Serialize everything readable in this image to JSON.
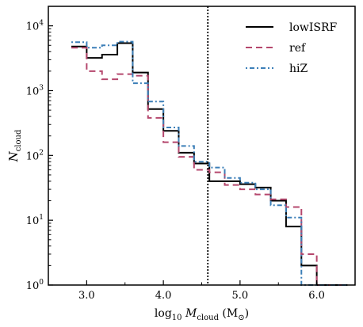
{
  "chart_data": {
    "type": "line",
    "drawstyle": "steps",
    "xlabel": {
      "prefix": "log",
      "prefix_sub": "10",
      "var": "M",
      "var_sub": "cloud",
      "unit_open": " (M",
      "unit_sym": "⊙",
      "unit_close": ")"
    },
    "ylabel": {
      "var": "N",
      "var_sub": "cloud"
    },
    "xlim": [
      2.5,
      6.5
    ],
    "ylim": [
      1,
      20000
    ],
    "yscale": "log",
    "xticks": [
      3.0,
      4.0,
      5.0,
      6.0
    ],
    "xtick_labels": [
      "3.0",
      "4.0",
      "5.0",
      "6.0"
    ],
    "yticks": [
      {
        "value": 1,
        "base": "10",
        "exp": "0"
      },
      {
        "value": 10,
        "base": "10",
        "exp": "1"
      },
      {
        "value": 100,
        "base": "10",
        "exp": "2"
      },
      {
        "value": 1000,
        "base": "10",
        "exp": "3"
      },
      {
        "value": 10000,
        "base": "10",
        "exp": "4"
      }
    ],
    "bin_edges": [
      2.8,
      3.0,
      3.2,
      3.4,
      3.6,
      3.8,
      4.0,
      4.2,
      4.4,
      4.6,
      4.8,
      5.0,
      5.2,
      5.4,
      5.6,
      5.8,
      6.0,
      6.2,
      6.4
    ],
    "vline_x": 4.58,
    "legend_position": "top-right",
    "series": [
      {
        "name": "lowISRF",
        "color": "#000000",
        "dash": "",
        "values": [
          4800,
          3200,
          3600,
          5400,
          1900,
          520,
          240,
          110,
          75,
          40,
          40,
          36,
          32,
          20,
          8,
          2,
          1,
          1
        ]
      },
      {
        "name": "ref",
        "color": "#b5476d",
        "dash": "8,5",
        "values": [
          4600,
          2000,
          1500,
          1800,
          1700,
          380,
          160,
          95,
          60,
          55,
          35,
          30,
          25,
          21,
          16,
          3,
          1,
          1
        ]
      },
      {
        "name": "hiZ",
        "color": "#3c7fb8",
        "dash": "2,3,6,3",
        "values": [
          5600,
          4600,
          5000,
          5700,
          1300,
          680,
          270,
          140,
          80,
          65,
          45,
          38,
          30,
          17,
          11,
          1,
          1,
          1
        ]
      }
    ]
  }
}
